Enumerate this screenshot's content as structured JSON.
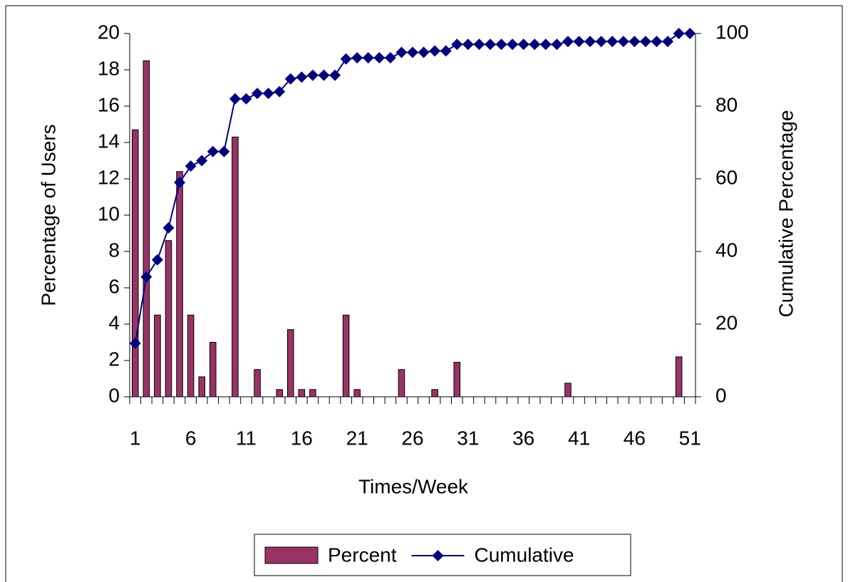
{
  "chart_data": {
    "type": "bar",
    "x_label": "Times/Week",
    "y_label": "Percentage of Users",
    "y2_label": "Cumulative Percentage",
    "categories": [
      1,
      null,
      null,
      null,
      null,
      6,
      null,
      null,
      null,
      null,
      11,
      null,
      null,
      null,
      null,
      16,
      null,
      null,
      null,
      null,
      21,
      null,
      null,
      null,
      null,
      26,
      null,
      null,
      null,
      null,
      31,
      null,
      null,
      null,
      null,
      36,
      null,
      null,
      null,
      null,
      41,
      null,
      null,
      null,
      null,
      46,
      null,
      null,
      null,
      null,
      51
    ],
    "series": [
      {
        "name": "Percent",
        "type": "bar",
        "color": "#993366",
        "values": [
          14.7,
          18.5,
          4.5,
          8.6,
          12.4,
          4.5,
          1.1,
          3.0,
          0,
          14.3,
          0,
          1.5,
          0,
          0.4,
          3.7,
          0.4,
          0.4,
          0,
          0,
          4.5,
          0.4,
          0,
          0,
          0,
          1.5,
          0,
          0,
          0.4,
          0,
          1.9,
          0,
          0,
          0,
          0,
          0,
          0,
          0,
          0,
          0,
          0.75,
          0,
          0,
          0,
          0,
          0,
          0,
          0,
          0,
          0,
          2.2,
          0
        ]
      },
      {
        "name": "Cumulative",
        "type": "line",
        "axis": "y2",
        "color": "#000080",
        "values": [
          14.7,
          33,
          37.7,
          46.5,
          59,
          63.5,
          65,
          67.5,
          67.5,
          82,
          82,
          83.5,
          83.5,
          84,
          87.5,
          88,
          88.5,
          88.5,
          88.5,
          93,
          93.3,
          93.3,
          93.3,
          93.3,
          94.8,
          94.8,
          94.8,
          95.2,
          95.2,
          97,
          97,
          97,
          97,
          97,
          97,
          97,
          97,
          97,
          97,
          97.8,
          97.8,
          97.8,
          97.8,
          97.8,
          97.8,
          97.8,
          97.8,
          97.8,
          97.8,
          100,
          100
        ]
      }
    ],
    "ylim": [
      0,
      20
    ],
    "yticks": [
      0,
      2,
      4,
      6,
      8,
      10,
      12,
      14,
      16,
      18,
      20
    ],
    "y2lim": [
      0,
      100
    ],
    "y2ticks": [
      0,
      20,
      40,
      60,
      80,
      100
    ],
    "legend": "bottom"
  }
}
